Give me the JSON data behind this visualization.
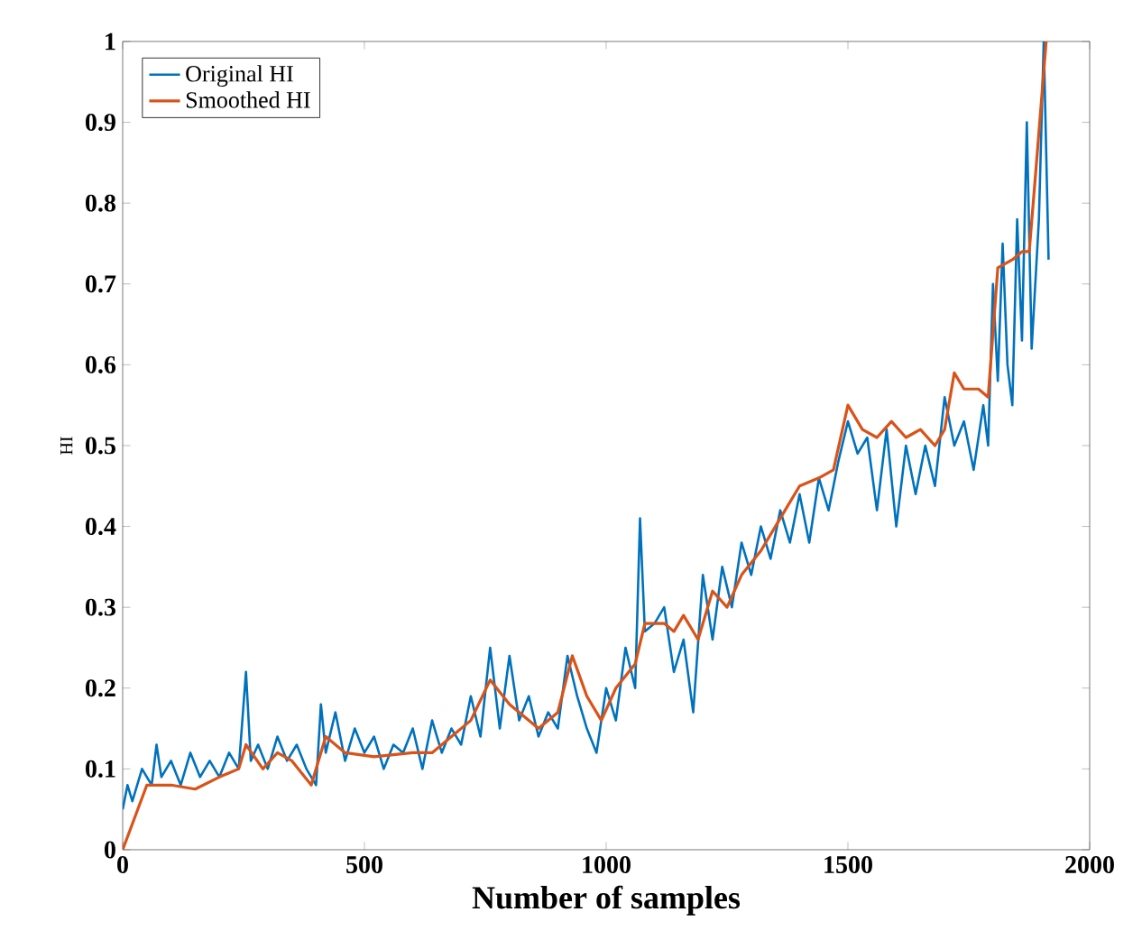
{
  "chart_data": {
    "type": "line",
    "xlabel": "Number of samples",
    "ylabel": "HI",
    "xlim": [
      0,
      2000
    ],
    "ylim": [
      0,
      1
    ],
    "xticks": [
      0,
      500,
      1000,
      1500,
      2000
    ],
    "yticks": [
      0,
      0.1,
      0.2,
      0.3,
      0.4,
      0.5,
      0.6,
      0.7,
      0.8,
      0.9,
      1
    ],
    "legend": "top left",
    "grid": false,
    "marker": "none",
    "line_style": "solid",
    "series": [
      {
        "name": "Original HI",
        "color": "#0072bd",
        "x": [
          0,
          10,
          20,
          40,
          60,
          70,
          80,
          100,
          120,
          140,
          160,
          180,
          200,
          220,
          240,
          255,
          265,
          280,
          300,
          320,
          340,
          360,
          380,
          400,
          410,
          420,
          440,
          460,
          480,
          500,
          520,
          540,
          560,
          580,
          600,
          620,
          640,
          660,
          680,
          700,
          720,
          740,
          760,
          780,
          800,
          820,
          840,
          860,
          880,
          900,
          920,
          940,
          960,
          980,
          1000,
          1020,
          1040,
          1060,
          1070,
          1080,
          1100,
          1120,
          1140,
          1160,
          1180,
          1200,
          1220,
          1240,
          1260,
          1280,
          1300,
          1320,
          1340,
          1360,
          1380,
          1400,
          1420,
          1440,
          1460,
          1480,
          1500,
          1520,
          1540,
          1560,
          1580,
          1600,
          1620,
          1640,
          1660,
          1680,
          1700,
          1720,
          1740,
          1760,
          1780,
          1790,
          1800,
          1810,
          1820,
          1830,
          1840,
          1850,
          1860,
          1870,
          1880,
          1895,
          1905,
          1915
        ],
        "values": [
          0.05,
          0.08,
          0.06,
          0.1,
          0.08,
          0.13,
          0.09,
          0.11,
          0.08,
          0.12,
          0.09,
          0.11,
          0.09,
          0.12,
          0.1,
          0.22,
          0.11,
          0.13,
          0.1,
          0.14,
          0.11,
          0.13,
          0.1,
          0.08,
          0.18,
          0.12,
          0.17,
          0.11,
          0.15,
          0.12,
          0.14,
          0.1,
          0.13,
          0.12,
          0.15,
          0.1,
          0.16,
          0.12,
          0.15,
          0.13,
          0.19,
          0.14,
          0.25,
          0.15,
          0.24,
          0.16,
          0.19,
          0.14,
          0.17,
          0.15,
          0.24,
          0.19,
          0.15,
          0.12,
          0.2,
          0.16,
          0.25,
          0.2,
          0.41,
          0.27,
          0.28,
          0.3,
          0.22,
          0.26,
          0.17,
          0.34,
          0.26,
          0.35,
          0.3,
          0.38,
          0.34,
          0.4,
          0.36,
          0.42,
          0.38,
          0.44,
          0.38,
          0.46,
          0.42,
          0.48,
          0.53,
          0.49,
          0.51,
          0.42,
          0.52,
          0.4,
          0.5,
          0.44,
          0.5,
          0.45,
          0.56,
          0.5,
          0.53,
          0.47,
          0.55,
          0.5,
          0.7,
          0.58,
          0.75,
          0.6,
          0.55,
          0.78,
          0.63,
          0.9,
          0.62,
          0.78,
          1.0,
          0.73
        ]
      },
      {
        "name": "Smoothed HI",
        "color": "#d95319",
        "x": [
          0,
          50,
          100,
          150,
          200,
          240,
          255,
          290,
          320,
          350,
          390,
          420,
          460,
          520,
          600,
          640,
          680,
          720,
          760,
          800,
          860,
          900,
          930,
          960,
          990,
          1020,
          1060,
          1080,
          1120,
          1140,
          1160,
          1190,
          1220,
          1250,
          1280,
          1320,
          1360,
          1400,
          1440,
          1470,
          1500,
          1530,
          1560,
          1590,
          1620,
          1650,
          1680,
          1700,
          1720,
          1740,
          1770,
          1790,
          1810,
          1840,
          1860,
          1875,
          1890,
          1910
        ],
        "values": [
          0,
          0.08,
          0.08,
          0.075,
          0.09,
          0.1,
          0.13,
          0.1,
          0.12,
          0.11,
          0.08,
          0.14,
          0.12,
          0.115,
          0.12,
          0.12,
          0.14,
          0.16,
          0.21,
          0.18,
          0.15,
          0.17,
          0.24,
          0.19,
          0.16,
          0.2,
          0.23,
          0.28,
          0.28,
          0.27,
          0.29,
          0.26,
          0.32,
          0.3,
          0.34,
          0.37,
          0.41,
          0.45,
          0.46,
          0.47,
          0.55,
          0.52,
          0.51,
          0.53,
          0.51,
          0.52,
          0.5,
          0.52,
          0.59,
          0.57,
          0.57,
          0.56,
          0.72,
          0.73,
          0.74,
          0.74,
          0.85,
          1.0
        ]
      }
    ]
  }
}
